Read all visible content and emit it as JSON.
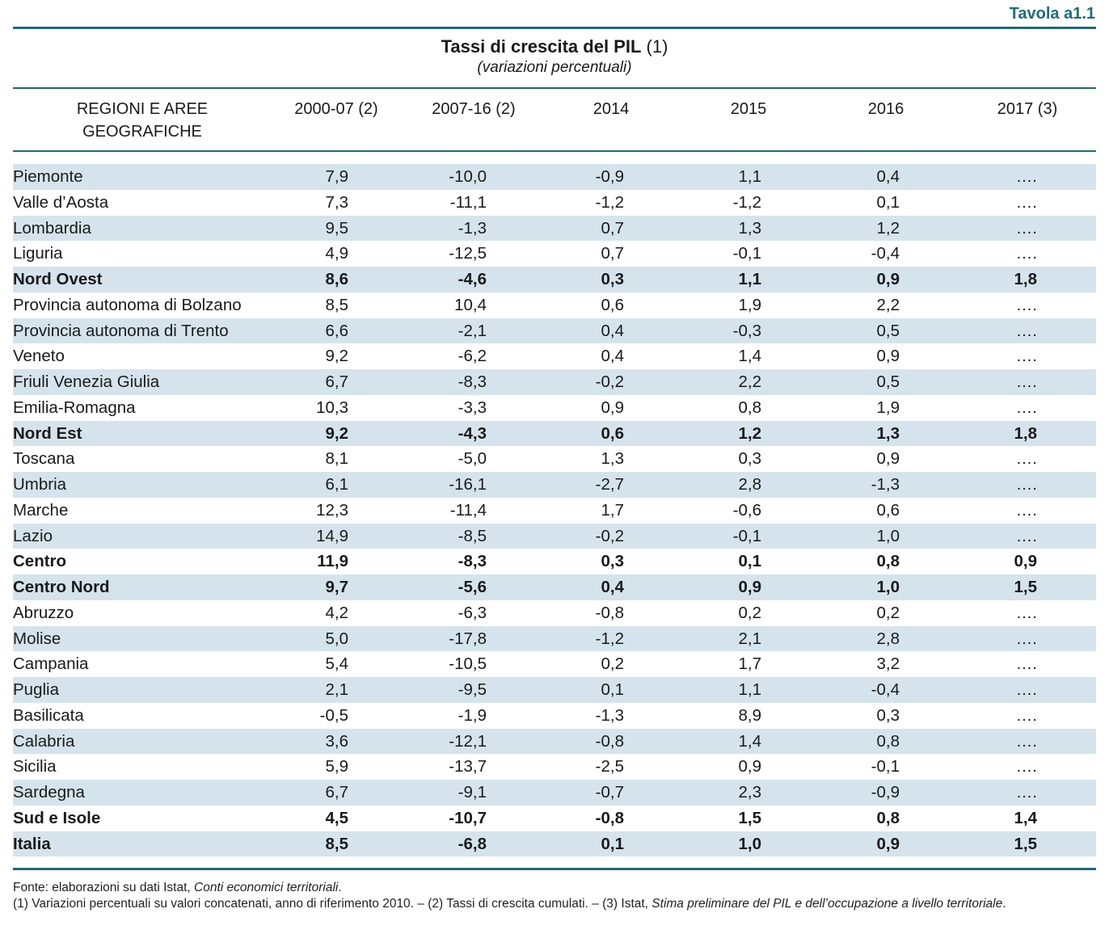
{
  "table_label": "Tavola a1.1",
  "title": {
    "main": "Tassi di crescita del PIL",
    "note_ref": "(1)",
    "subtitle": "(variazioni percentuali)"
  },
  "columns": [
    "REGIONI E AREE GEOGRAFICHE",
    "2000-07 (2)",
    "2007-16 (2)",
    "2014",
    "2015",
    "2016",
    "2017 (3)"
  ],
  "rows": [
    {
      "name": "Piemonte",
      "values": [
        "7,9",
        "-10,0",
        "-0,9",
        "1,1",
        "0,4",
        "…."
      ],
      "bold": false
    },
    {
      "name": "Valle d’Aosta",
      "values": [
        "7,3",
        "-11,1",
        "-1,2",
        "-1,2",
        "0,1",
        "…."
      ],
      "bold": false
    },
    {
      "name": "Lombardia",
      "values": [
        "9,5",
        "-1,3",
        "0,7",
        "1,3",
        "1,2",
        "…."
      ],
      "bold": false
    },
    {
      "name": "Liguria",
      "values": [
        "4,9",
        "-12,5",
        "0,7",
        "-0,1",
        "-0,4",
        "…."
      ],
      "bold": false
    },
    {
      "name": "Nord Ovest",
      "values": [
        "8,6",
        "-4,6",
        "0,3",
        "1,1",
        "0,9",
        "1,8"
      ],
      "bold": true
    },
    {
      "name": "Provincia autonoma di Bolzano",
      "values": [
        "8,5",
        "10,4",
        "0,6",
        "1,9",
        "2,2",
        "…."
      ],
      "bold": false
    },
    {
      "name": "Provincia autonoma di Trento",
      "values": [
        "6,6",
        "-2,1",
        "0,4",
        "-0,3",
        "0,5",
        "…."
      ],
      "bold": false
    },
    {
      "name": "Veneto",
      "values": [
        "9,2",
        "-6,2",
        "0,4",
        "1,4",
        "0,9",
        "…."
      ],
      "bold": false
    },
    {
      "name": "Friuli Venezia Giulia",
      "values": [
        "6,7",
        "-8,3",
        "-0,2",
        "2,2",
        "0,5",
        "…."
      ],
      "bold": false
    },
    {
      "name": "Emilia-Romagna",
      "values": [
        "10,3",
        "-3,3",
        "0,9",
        "0,8",
        "1,9",
        "…."
      ],
      "bold": false
    },
    {
      "name": "Nord Est",
      "values": [
        "9,2",
        "-4,3",
        "0,6",
        "1,2",
        "1,3",
        "1,8"
      ],
      "bold": true
    },
    {
      "name": "Toscana",
      "values": [
        "8,1",
        "-5,0",
        "1,3",
        "0,3",
        "0,9",
        "…."
      ],
      "bold": false
    },
    {
      "name": "Umbria",
      "values": [
        "6,1",
        "-16,1",
        "-2,7",
        "2,8",
        "-1,3",
        "…."
      ],
      "bold": false
    },
    {
      "name": "Marche",
      "values": [
        "12,3",
        "-11,4",
        "1,7",
        "-0,6",
        "0,6",
        "…."
      ],
      "bold": false
    },
    {
      "name": "Lazio",
      "values": [
        "14,9",
        "-8,5",
        "-0,2",
        "-0,1",
        "1,0",
        "…."
      ],
      "bold": false
    },
    {
      "name": "Centro",
      "values": [
        "11,9",
        "-8,3",
        "0,3",
        "0,1",
        "0,8",
        "0,9"
      ],
      "bold": true
    },
    {
      "name": "Centro Nord",
      "values": [
        "9,7",
        "-5,6",
        "0,4",
        "0,9",
        "1,0",
        "1,5"
      ],
      "bold": true
    },
    {
      "name": "Abruzzo",
      "values": [
        "4,2",
        "-6,3",
        "-0,8",
        "0,2",
        "0,2",
        "…."
      ],
      "bold": false
    },
    {
      "name": "Molise",
      "values": [
        "5,0",
        "-17,8",
        "-1,2",
        "2,1",
        "2,8",
        "…."
      ],
      "bold": false
    },
    {
      "name": "Campania",
      "values": [
        "5,4",
        "-10,5",
        "0,2",
        "1,7",
        "3,2",
        "…."
      ],
      "bold": false
    },
    {
      "name": "Puglia",
      "values": [
        "2,1",
        "-9,5",
        "0,1",
        "1,1",
        "-0,4",
        "…."
      ],
      "bold": false
    },
    {
      "name": "Basilicata",
      "values": [
        "-0,5",
        "-1,9",
        "-1,3",
        "8,9",
        "0,3",
        "…."
      ],
      "bold": false
    },
    {
      "name": "Calabria",
      "values": [
        "3,6",
        "-12,1",
        "-0,8",
        "1,4",
        "0,8",
        "…."
      ],
      "bold": false
    },
    {
      "name": "Sicilia",
      "values": [
        "5,9",
        "-13,7",
        "-2,5",
        "0,9",
        "-0,1",
        "…."
      ],
      "bold": false
    },
    {
      "name": "Sardegna",
      "values": [
        "6,7",
        "-9,1",
        "-0,7",
        "2,3",
        "-0,9",
        "…."
      ],
      "bold": false
    },
    {
      "name": "Sud e Isole",
      "values": [
        "4,5",
        "-10,7",
        "-0,8",
        "1,5",
        "0,8",
        "1,4"
      ],
      "bold": true
    },
    {
      "name": "Italia",
      "values": [
        "8,5",
        "-6,8",
        "0,1",
        "1,0",
        "0,9",
        "1,5"
      ],
      "bold": true
    }
  ],
  "notes": {
    "source_prefix": "Fonte: elaborazioni su dati Istat, ",
    "source_italic": "Conti economici territoriali",
    "source_suffix": ".",
    "note_main": "(1) Variazioni percentuali su valori concatenati, anno di riferimento 2010. – (2) Tassi di crescita cumulati. – (3) Istat, ",
    "note_italic": "Stima preliminare del PIL e dell’occupazione a livello territoriale",
    "note_end": "."
  },
  "colors": {
    "accent": "#1d6b7c",
    "row_shade": "#d5e4ec"
  }
}
